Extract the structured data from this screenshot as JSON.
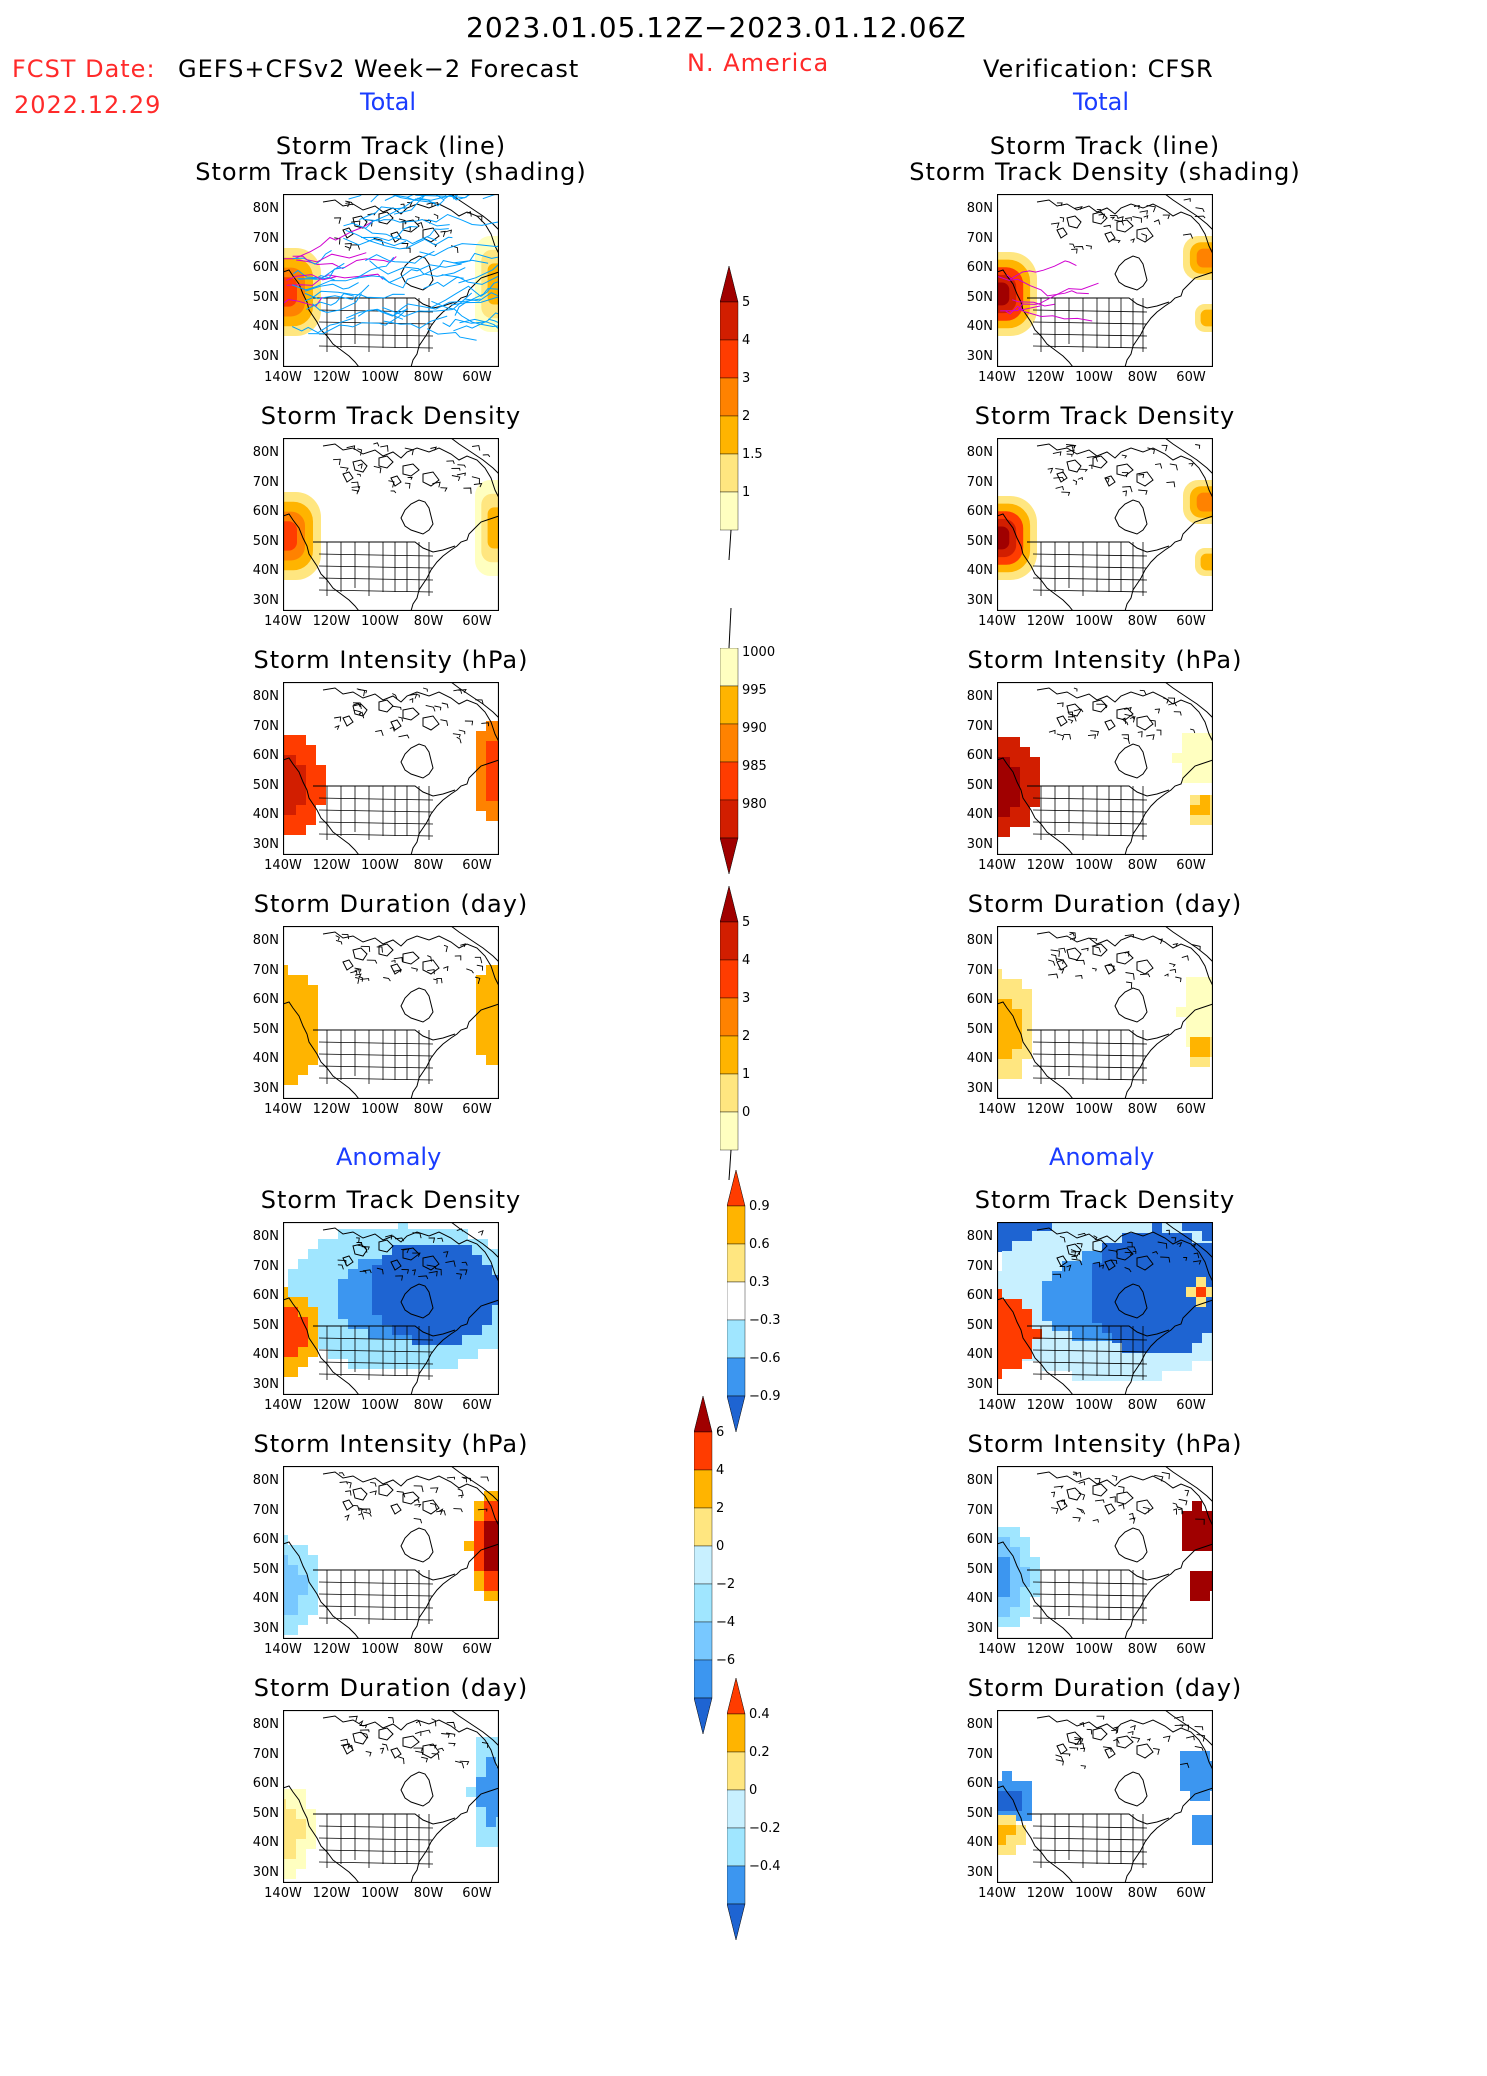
{
  "header": {
    "period": "2023.01.05.12Z−2023.01.12.06Z",
    "fcst_label": "FCST Date:",
    "fcst_model": "GEFS+CFSv2 Week−2 Forecast",
    "fcst_date": "2022.12.29",
    "region": "N. America",
    "verification": "Verification: CFSR"
  },
  "sections": {
    "total": "Total",
    "anomaly": "Anomaly"
  },
  "panel_titles": {
    "track_line": "Storm Track (line)",
    "track_shading": "Storm Track Density (shading)",
    "density": "Storm Track Density",
    "intensity": "Storm Intensity (hPa)",
    "duration": "Storm Duration (day)"
  },
  "axes": {
    "lat_labels": [
      "80N",
      "70N",
      "60N",
      "50N",
      "40N",
      "30N"
    ],
    "lon_labels": [
      "140W",
      "120W",
      "100W",
      "80W",
      "60W"
    ]
  },
  "colorbars": {
    "density_total": [
      "5",
      "4",
      "3",
      "2",
      "1.5",
      "1"
    ],
    "intensity_total": [
      "1000",
      "995",
      "990",
      "985",
      "980"
    ],
    "duration_total": [
      "5",
      "4",
      "3",
      "2",
      "1",
      "0"
    ],
    "density_anom": [
      "0.9",
      "0.6",
      "0.3",
      "−0.3",
      "−0.6",
      "−0.9"
    ],
    "intensity_anom": [
      "6",
      "4",
      "2",
      "0",
      "−2",
      "−4",
      "−6"
    ],
    "duration_anom": [
      "0.4",
      "0.2",
      "0",
      "−0.2",
      "−0.4"
    ]
  },
  "colors": {
    "warm": [
      "#ffffc0",
      "#ffe680",
      "#ffb400",
      "#ff8200",
      "#ff3c00",
      "#d21e00",
      "#a00000"
    ],
    "cool": [
      "#c8f0ff",
      "#a0e6ff",
      "#78c8ff",
      "#3c96f0",
      "#1e64d2"
    ],
    "track_line": "#00a0ff",
    "title_red": "#ff2a2a",
    "title_blue": "#1a3cff"
  }
}
